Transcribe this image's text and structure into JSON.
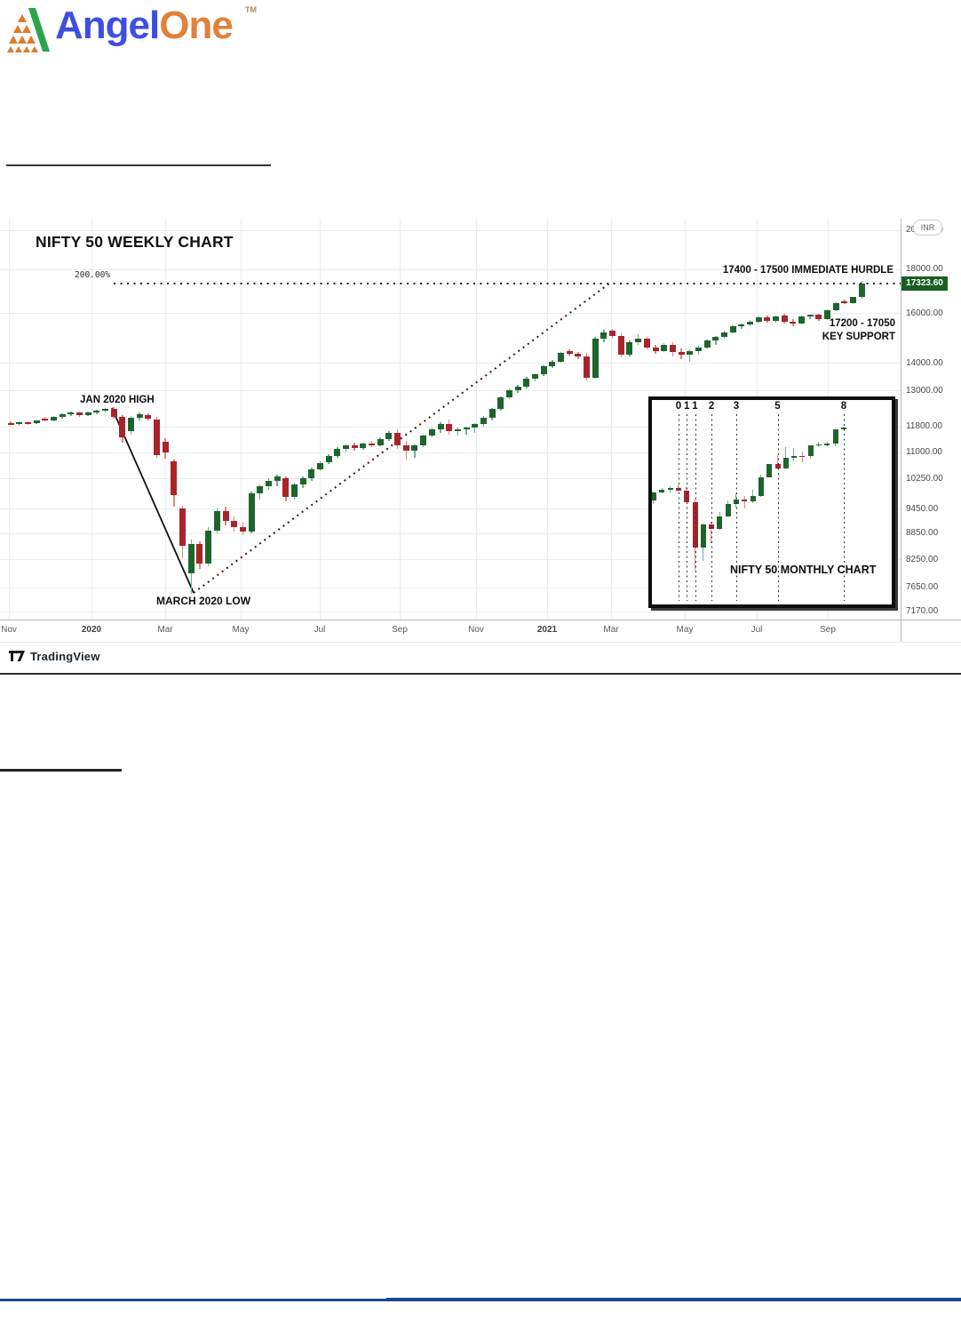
{
  "brand": {
    "angel": "Angel",
    "one": "One",
    "tm": "TM"
  },
  "chart": {
    "title": "NIFTY 50  WEEKLY CHART",
    "fib_label": "200.00%",
    "annotations": {
      "jan_high": "JAN 2020 HIGH",
      "march_low": "MARCH 2020 LOW",
      "hurdle": "17400 - 17500 IMMEDIATE HURDLE",
      "support_line1": "17200 - 17050",
      "support_line2": "KEY SUPPORT"
    },
    "price_axis": {
      "currency": "INR",
      "last_price": "17323.60"
    },
    "attribution": "TradingView",
    "inset": {
      "title": "NIFTY 50 MONTHLY CHART"
    }
  },
  "chart_data": {
    "type": "candlestick",
    "instrument": "NIFTY 50",
    "scale": "log",
    "y_axis_ticks": [
      20000,
      18000,
      16000,
      14000,
      13000,
      11800,
      11000,
      10250,
      9450,
      8850,
      8250,
      7650,
      7170
    ],
    "x_axis_ticks": [
      "Nov",
      "2020",
      "Mar",
      "May",
      "Jul",
      "Sep",
      "Nov",
      "2021",
      "Mar",
      "May",
      "Jul",
      "Sep"
    ],
    "levels": {
      "fib_200_pct_price": 17360,
      "last_price": 17323.6,
      "immediate_hurdle": "17400 - 17500",
      "key_support": "17200 - 17050",
      "jan_2020_high": 12430,
      "march_2020_low": 7511
    },
    "weekly": {
      "title": "NIFTY 50 WEEKLY CHART",
      "timeframe": "Nov 2019 - Sep 2021",
      "candles": [
        [
          11900,
          11970,
          11840,
          11880
        ],
        [
          11880,
          11950,
          11820,
          11920
        ],
        [
          11920,
          11970,
          11850,
          11890
        ],
        [
          11890,
          12000,
          11860,
          11980
        ],
        [
          12050,
          12100,
          11950,
          11990
        ],
        [
          11990,
          12120,
          11960,
          12090
        ],
        [
          12090,
          12230,
          12050,
          12200
        ],
        [
          12200,
          12290,
          12140,
          12240
        ],
        [
          12240,
          12280,
          12110,
          12150
        ],
        [
          12150,
          12280,
          12130,
          12250
        ],
        [
          12250,
          12330,
          12200,
          12300
        ],
        [
          12300,
          12400,
          12250,
          12360
        ],
        [
          12360,
          12430,
          12040,
          12100
        ],
        [
          12100,
          12160,
          11300,
          11460
        ],
        [
          11650,
          12120,
          11550,
          12080
        ],
        [
          12080,
          12260,
          12000,
          12200
        ],
        [
          12150,
          12210,
          11980,
          12050
        ],
        [
          12030,
          12090,
          10830,
          10920
        ],
        [
          11330,
          11433,
          10820,
          11000
        ],
        [
          10750,
          10800,
          9500,
          9800
        ],
        [
          9460,
          9520,
          8280,
          8560
        ],
        [
          7940,
          8700,
          7511,
          8590
        ],
        [
          8590,
          8660,
          8050,
          8150
        ],
        [
          8150,
          9000,
          8100,
          8920
        ],
        [
          8920,
          9450,
          8850,
          9390
        ],
        [
          9390,
          9500,
          9050,
          9150
        ],
        [
          9150,
          9250,
          8900,
          9000
        ],
        [
          9000,
          9100,
          8800,
          8900
        ],
        [
          8900,
          9900,
          8850,
          9850
        ],
        [
          9850,
          10100,
          9700,
          10050
        ],
        [
          10050,
          10250,
          9950,
          10200
        ],
        [
          10200,
          10350,
          10050,
          10300
        ],
        [
          10250,
          10300,
          9650,
          9760
        ],
        [
          9760,
          10150,
          9700,
          10100
        ],
        [
          10100,
          10300,
          10000,
          10250
        ],
        [
          10250,
          10550,
          10200,
          10500
        ],
        [
          10500,
          10750,
          10450,
          10700
        ],
        [
          10700,
          10950,
          10650,
          10900
        ],
        [
          10900,
          11150,
          10850,
          11100
        ],
        [
          11100,
          11250,
          11000,
          11200
        ],
        [
          11200,
          11280,
          11050,
          11120
        ],
        [
          11120,
          11300,
          11080,
          11270
        ],
        [
          11270,
          11350,
          11150,
          11220
        ],
        [
          11220,
          11450,
          11180,
          11400
        ],
        [
          11400,
          11650,
          11350,
          11600
        ],
        [
          11600,
          11700,
          11100,
          11200
        ],
        [
          11200,
          11350,
          10790,
          11050
        ],
        [
          11050,
          11250,
          10850,
          11200
        ],
        [
          11200,
          11550,
          11150,
          11500
        ],
        [
          11500,
          11750,
          11450,
          11700
        ],
        [
          11700,
          11930,
          11600,
          11880
        ],
        [
          11880,
          12020,
          11550,
          11650
        ],
        [
          11650,
          11750,
          11500,
          11700
        ],
        [
          11700,
          11800,
          11550,
          11760
        ],
        [
          11760,
          11900,
          11600,
          11870
        ],
        [
          11870,
          12120,
          11800,
          12080
        ],
        [
          12080,
          12390,
          12000,
          12360
        ],
        [
          12360,
          12800,
          12300,
          12750
        ],
        [
          12750,
          13050,
          12700,
          13000
        ],
        [
          13000,
          13180,
          12900,
          13130
        ],
        [
          13130,
          13480,
          13050,
          13420
        ],
        [
          13420,
          13600,
          13330,
          13560
        ],
        [
          13560,
          13900,
          13500,
          13870
        ],
        [
          13870,
          14100,
          13800,
          14050
        ],
        [
          14050,
          14420,
          14000,
          14380
        ],
        [
          14430,
          14500,
          14280,
          14350
        ],
        [
          14350,
          14420,
          14150,
          14250
        ],
        [
          14250,
          14370,
          13350,
          13450
        ],
        [
          13450,
          15000,
          13400,
          14920
        ],
        [
          14920,
          15280,
          14800,
          15180
        ],
        [
          15250,
          15320,
          14950,
          15050
        ],
        [
          15040,
          15150,
          14200,
          14300
        ],
        [
          14300,
          14870,
          14250,
          14810
        ],
        [
          14810,
          15100,
          14700,
          14940
        ],
        [
          14940,
          15000,
          14500,
          14600
        ],
        [
          14600,
          14700,
          14350,
          14450
        ],
        [
          14450,
          14750,
          14400,
          14700
        ],
        [
          14700,
          14800,
          14250,
          14400
        ],
        [
          14400,
          14550,
          14150,
          14300
        ],
        [
          14300,
          14500,
          14050,
          14450
        ],
        [
          14450,
          14650,
          14300,
          14600
        ],
        [
          14600,
          14900,
          14550,
          14850
        ],
        [
          14850,
          15050,
          14700,
          15000
        ],
        [
          15000,
          15250,
          14950,
          15200
        ],
        [
          15200,
          15480,
          15150,
          15440
        ],
        [
          15440,
          15560,
          15350,
          15520
        ],
        [
          15520,
          15700,
          15450,
          15630
        ],
        [
          15630,
          15860,
          15580,
          15810
        ],
        [
          15810,
          15900,
          15600,
          15660
        ],
        [
          15660,
          15900,
          15600,
          15850
        ],
        [
          15880,
          15960,
          15550,
          15640
        ],
        [
          15640,
          15750,
          15450,
          15560
        ],
        [
          15560,
          15900,
          15510,
          15860
        ],
        [
          15840,
          15950,
          15750,
          15920
        ],
        [
          15920,
          15980,
          15680,
          15760
        ],
        [
          15760,
          16180,
          15700,
          16140
        ],
        [
          16140,
          16480,
          16100,
          16450
        ],
        [
          16530,
          16600,
          16380,
          16420
        ],
        [
          16420,
          16730,
          16380,
          16700
        ],
        [
          16700,
          17436,
          16650,
          17323.6
        ]
      ]
    },
    "monthly": {
      "title": "NIFTY 50 MONTHLY CHART",
      "timeframe": "Oct 2019 - Sep 2021",
      "candles": [
        [
          11300,
          11945,
          11090,
          11877
        ],
        [
          11877,
          12158,
          11802,
          12056
        ],
        [
          12056,
          12293,
          11832,
          12168
        ],
        [
          12168,
          12430,
          11930,
          11962
        ],
        [
          11962,
          12246,
          11175,
          11202
        ],
        [
          11202,
          11433,
          7511,
          8598
        ],
        [
          8598,
          9889,
          7966,
          9860
        ],
        [
          9860,
          10000,
          8807,
          9580
        ],
        [
          9580,
          10553,
          9544,
          10302
        ],
        [
          10302,
          11341,
          10300,
          11073
        ],
        [
          11073,
          11794,
          10882,
          11388
        ],
        [
          11388,
          11618,
          10790,
          11248
        ],
        [
          11248,
          12025,
          11140,
          11642
        ],
        [
          11642,
          13145,
          11557,
          12969
        ],
        [
          12969,
          14024,
          12962,
          13982
        ],
        [
          13982,
          14753,
          13597,
          13635
        ],
        [
          13635,
          15431,
          13662,
          14529
        ],
        [
          14529,
          15336,
          14264,
          14691
        ],
        [
          14691,
          15044,
          14151,
          14631
        ],
        [
          14631,
          15606,
          14416,
          15583
        ],
        [
          15583,
          15915,
          15450,
          15722
        ],
        [
          15722,
          15962,
          15513,
          15763
        ],
        [
          15763,
          17153,
          15513,
          17132
        ],
        [
          17132,
          17436,
          17132,
          17323.6
        ]
      ],
      "fib_time_zones": {
        "labels": [
          "0",
          "1",
          "1",
          "2",
          "3",
          "5",
          "8"
        ],
        "candle_indices": [
          3,
          4,
          5,
          7,
          10,
          15,
          23
        ]
      }
    }
  }
}
